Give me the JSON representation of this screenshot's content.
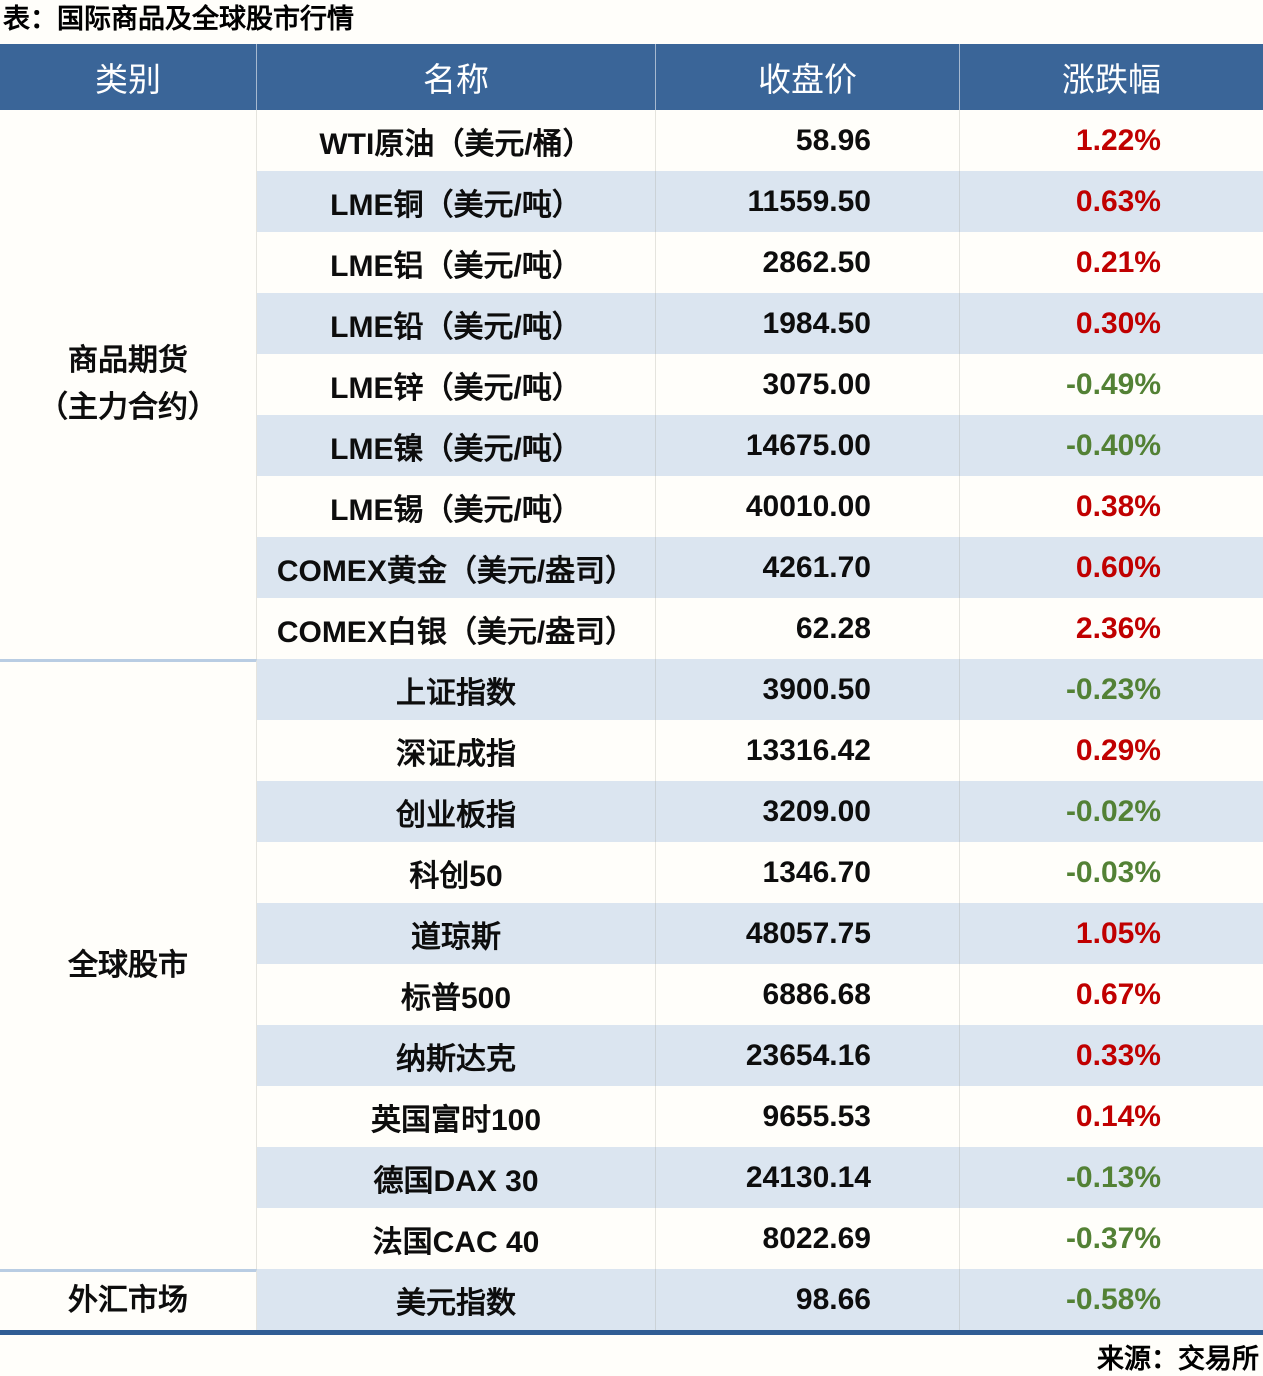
{
  "title": "表：国际商品及全球股市行情",
  "source": "来源：交易所",
  "table": {
    "headers": [
      "类别",
      "名称",
      "收盘价",
      "涨跌幅"
    ],
    "sections": [
      {
        "category_lines": [
          "商品期货",
          "（主力合约）"
        ],
        "rows": [
          {
            "name": "WTI原油（美元/桶）",
            "close": "58.96",
            "change": "1.22%",
            "direction": "up"
          },
          {
            "name": "LME铜（美元/吨）",
            "close": "11559.50",
            "change": "0.63%",
            "direction": "up"
          },
          {
            "name": "LME铝（美元/吨）",
            "close": "2862.50",
            "change": "0.21%",
            "direction": "up"
          },
          {
            "name": "LME铅（美元/吨）",
            "close": "1984.50",
            "change": "0.30%",
            "direction": "up"
          },
          {
            "name": "LME锌（美元/吨）",
            "close": "3075.00",
            "change": "-0.49%",
            "direction": "down"
          },
          {
            "name": "LME镍（美元/吨）",
            "close": "14675.00",
            "change": "-0.40%",
            "direction": "down"
          },
          {
            "name": "LME锡（美元/吨）",
            "close": "40010.00",
            "change": "0.38%",
            "direction": "up"
          },
          {
            "name": "COMEX黄金（美元/盎司）",
            "close": "4261.70",
            "change": "0.60%",
            "direction": "up"
          },
          {
            "name": "COMEX白银（美元/盎司）",
            "close": "62.28",
            "change": "2.36%",
            "direction": "up"
          }
        ]
      },
      {
        "category_lines": [
          "全球股市"
        ],
        "rows": [
          {
            "name": "上证指数",
            "close": "3900.50",
            "change": "-0.23%",
            "direction": "down"
          },
          {
            "name": "深证成指",
            "close": "13316.42",
            "change": "0.29%",
            "direction": "up"
          },
          {
            "name": "创业板指",
            "close": "3209.00",
            "change": "-0.02%",
            "direction": "down"
          },
          {
            "name": "科创50",
            "close": "1346.70",
            "change": "-0.03%",
            "direction": "down"
          },
          {
            "name": "道琼斯",
            "close": "48057.75",
            "change": "1.05%",
            "direction": "up"
          },
          {
            "name": "标普500",
            "close": "6886.68",
            "change": "0.67%",
            "direction": "up"
          },
          {
            "name": "纳斯达克",
            "close": "23654.16",
            "change": "0.33%",
            "direction": "up"
          },
          {
            "name": "英国富时100",
            "close": "9655.53",
            "change": "0.14%",
            "direction": "up"
          },
          {
            "name": "德国DAX 30",
            "close": "24130.14",
            "change": "-0.13%",
            "direction": "down"
          },
          {
            "name": "法国CAC 40",
            "close": "8022.69",
            "change": "-0.37%",
            "direction": "down"
          }
        ]
      },
      {
        "category_lines": [
          "外汇市场"
        ],
        "rows": [
          {
            "name": "美元指数",
            "close": "98.66",
            "change": "-0.58%",
            "direction": "down"
          }
        ]
      }
    ]
  },
  "colors": {
    "header_bg": "#3a6598",
    "stripe_row_bg": "#dbe5f0",
    "plain_row_bg": "#fffefa",
    "positive_change": "#c00000",
    "negative_change": "#538135",
    "bottom_border": "#305d94",
    "section_divider": "#b9cde3"
  },
  "chart_data": {
    "type": "table",
    "title": "表：国际商品及全球股市行情",
    "columns": [
      "类别",
      "名称",
      "收盘价",
      "涨跌幅"
    ],
    "rows": [
      [
        "商品期货（主力合约）",
        "WTI原油（美元/桶）",
        58.96,
        "1.22%"
      ],
      [
        "商品期货（主力合约）",
        "LME铜（美元/吨）",
        11559.5,
        "0.63%"
      ],
      [
        "商品期货（主力合约）",
        "LME铝（美元/吨）",
        2862.5,
        "0.21%"
      ],
      [
        "商品期货（主力合约）",
        "LME铅（美元/吨）",
        1984.5,
        "0.30%"
      ],
      [
        "商品期货（主力合约）",
        "LME锌（美元/吨）",
        3075.0,
        "-0.49%"
      ],
      [
        "商品期货（主力合约）",
        "LME镍（美元/吨）",
        14675.0,
        "-0.40%"
      ],
      [
        "商品期货（主力合约）",
        "LME锡（美元/吨）",
        40010.0,
        "0.38%"
      ],
      [
        "商品期货（主力合约）",
        "COMEX黄金（美元/盎司）",
        4261.7,
        "0.60%"
      ],
      [
        "商品期货（主力合约）",
        "COMEX白银（美元/盎司）",
        62.28,
        "2.36%"
      ],
      [
        "全球股市",
        "上证指数",
        3900.5,
        "-0.23%"
      ],
      [
        "全球股市",
        "深证成指",
        13316.42,
        "0.29%"
      ],
      [
        "全球股市",
        "创业板指",
        3209.0,
        "-0.02%"
      ],
      [
        "全球股市",
        "科创50",
        1346.7,
        "-0.03%"
      ],
      [
        "全球股市",
        "道琼斯",
        48057.75,
        "1.05%"
      ],
      [
        "全球股市",
        "标普500",
        6886.68,
        "0.67%"
      ],
      [
        "全球股市",
        "纳斯达克",
        23654.16,
        "0.33%"
      ],
      [
        "全球股市",
        "英国富时100",
        9655.53,
        "0.14%"
      ],
      [
        "全球股市",
        "德国DAX 30",
        24130.14,
        "-0.13%"
      ],
      [
        "全球股市",
        "法国CAC 40",
        8022.69,
        "-0.37%"
      ],
      [
        "外汇市场",
        "美元指数",
        98.66,
        "-0.58%"
      ]
    ],
    "source": "来源：交易所",
    "layout_hints": {
      "striped_rows": true,
      "red_means": "上涨（正涨跌幅）",
      "green_means": "下跌（负涨跌幅）",
      "category_column_merged_cells": true
    }
  }
}
